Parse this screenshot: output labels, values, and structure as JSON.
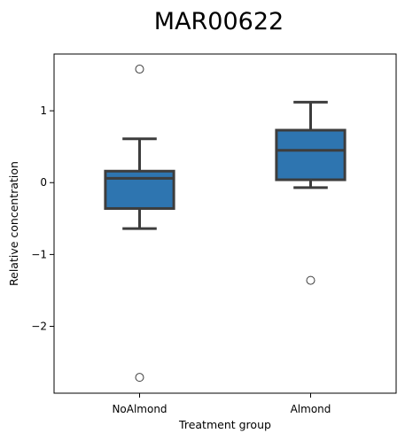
{
  "chart_data": {
    "type": "box",
    "title": "MAR00622",
    "xlabel": "Treatment group",
    "ylabel": "Relative concentration",
    "categories": [
      "NoAlmond",
      "Almond"
    ],
    "ylim": [
      -2.93,
      1.79
    ],
    "yticks": [
      1,
      0,
      -1,
      -2
    ],
    "ytick_labels": [
      "1",
      "0",
      "−1",
      "−2"
    ],
    "grid": false,
    "box_color": "#2e75b0",
    "line_color": "#3d3d3d",
    "boxes": [
      {
        "category": "NoAlmond",
        "whisker_low": -0.64,
        "q1": -0.36,
        "median": 0.06,
        "q3": 0.16,
        "whisker_high": 0.61,
        "outliers": [
          1.58,
          -2.71
        ]
      },
      {
        "category": "Almond",
        "whisker_low": -0.07,
        "q1": 0.04,
        "median": 0.45,
        "q3": 0.73,
        "whisker_high": 1.12,
        "outliers": [
          -1.36
        ]
      }
    ]
  }
}
